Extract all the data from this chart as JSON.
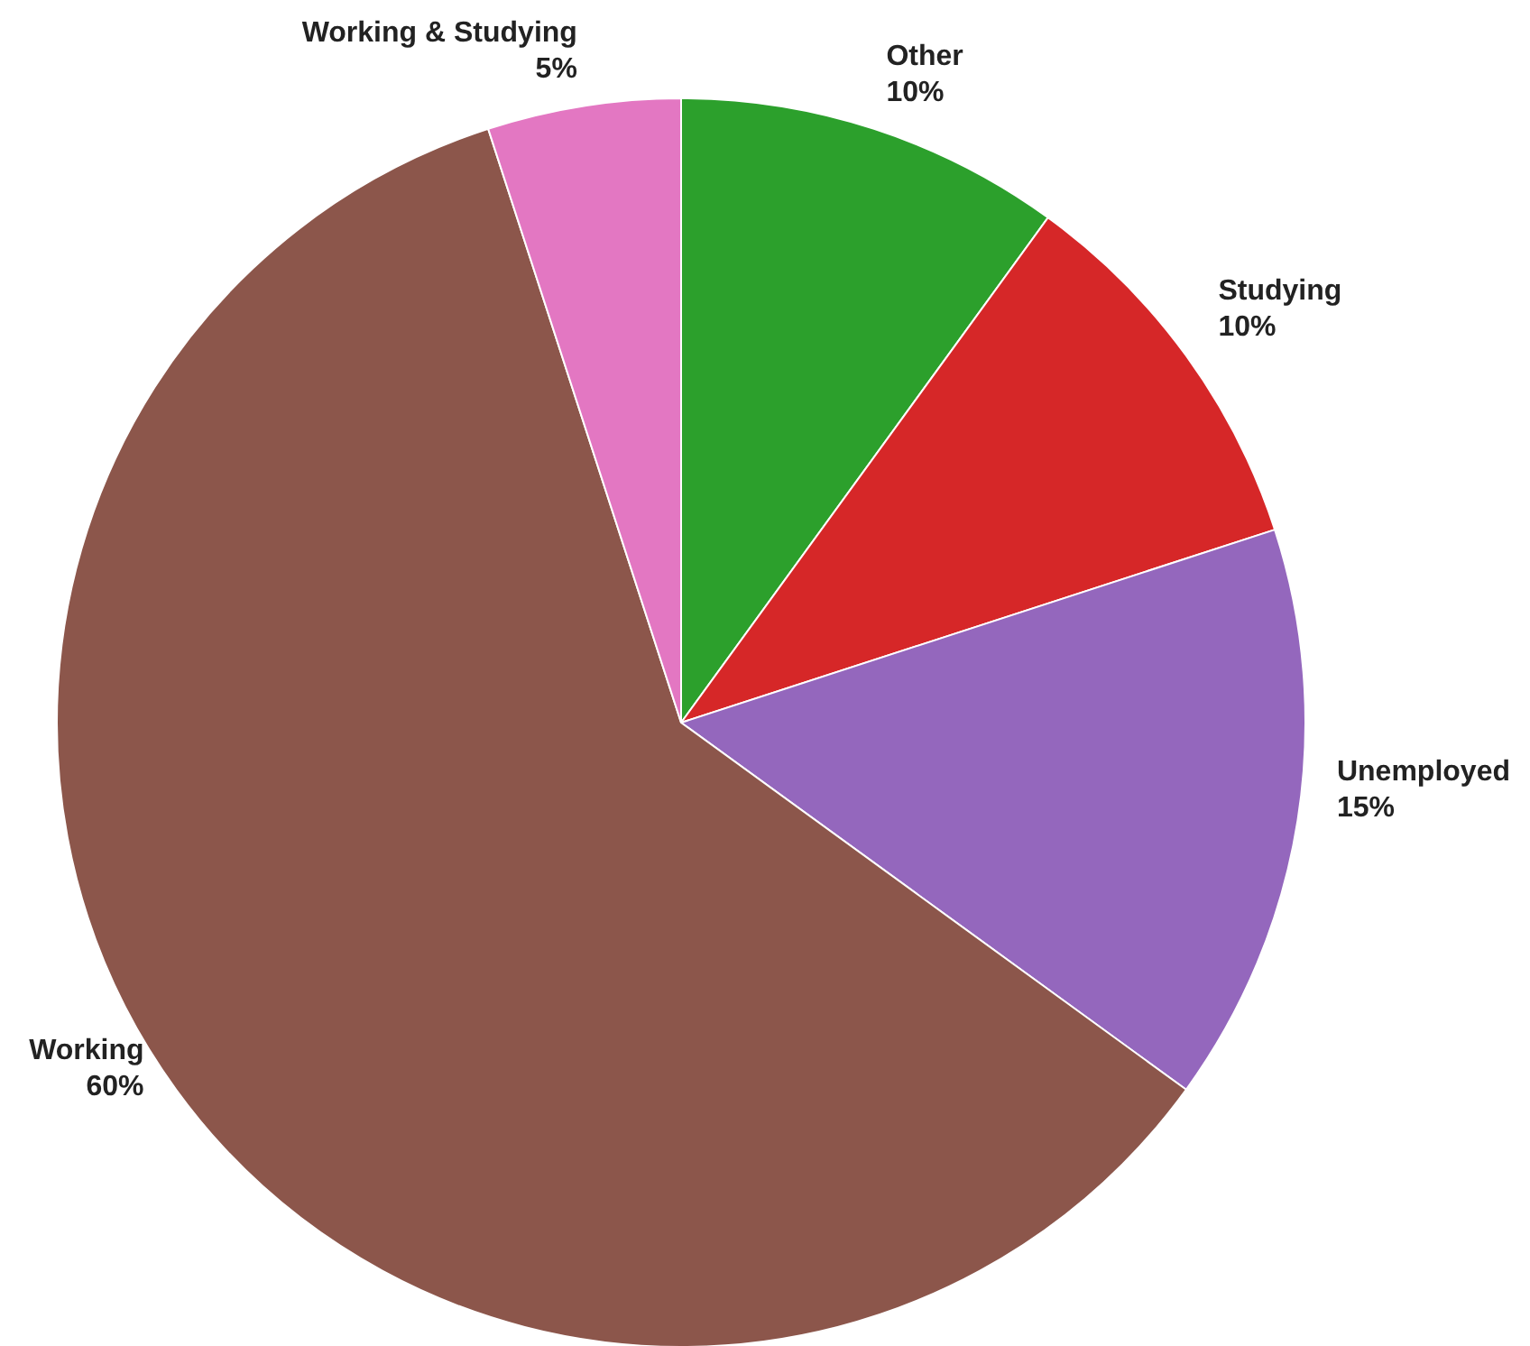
{
  "chart_data": {
    "type": "pie",
    "categories": [
      "Other",
      "Studying",
      "Unemployed",
      "Working",
      "Working & Studying"
    ],
    "values": [
      10,
      10,
      15,
      60,
      5
    ],
    "colors": [
      "#2ca02c",
      "#d62728",
      "#9467bd",
      "#8c564b",
      "#e377c2"
    ],
    "value_labels": [
      "10%",
      "10%",
      "15%",
      "60%",
      "5%"
    ]
  }
}
